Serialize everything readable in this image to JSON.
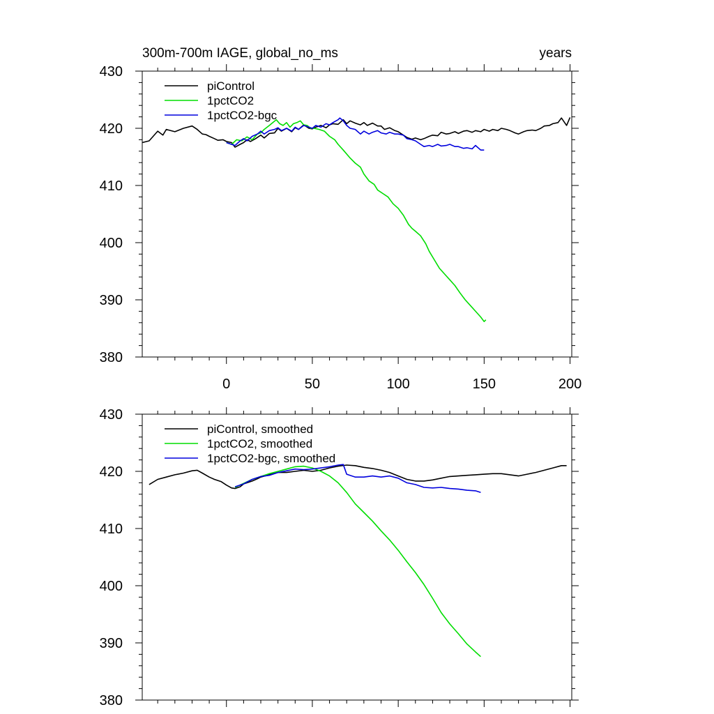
{
  "figure": {
    "title_left": "300m-700m IAGE, global_no_ms",
    "title_right": "years"
  },
  "chart_data": [
    {
      "type": "line",
      "title": "300m-700m IAGE, global_no_ms",
      "xlabel": "years",
      "ylabel": "",
      "xlim": [
        -49,
        201
      ],
      "ylim": [
        380,
        430
      ],
      "x_ticks": [
        0,
        50,
        100,
        150,
        200
      ],
      "x_tick_labels": [
        "0",
        "50",
        "100",
        "150",
        "200"
      ],
      "y_ticks": [
        380,
        390,
        400,
        410,
        420,
        430
      ],
      "y_tick_labels": [
        "380",
        "390",
        "400",
        "410",
        "420",
        "430"
      ],
      "grid": false,
      "legend_position": "top-left",
      "series": [
        {
          "name": "piControl",
          "color": "#000000",
          "x": [
            -49,
            -45,
            -40,
            -37,
            -35,
            -30,
            -25,
            -20,
            -17,
            -14,
            -12,
            -10,
            -7,
            -5,
            -2,
            0,
            3,
            5,
            8,
            10,
            12,
            14,
            17,
            20,
            22,
            25,
            28,
            30,
            32,
            35,
            38,
            40,
            42,
            45,
            48,
            50,
            52,
            55,
            58,
            60,
            62,
            65,
            68,
            70,
            72,
            75,
            78,
            80,
            82,
            85,
            88,
            90,
            92,
            95,
            98,
            100,
            103,
            105,
            108,
            110,
            113,
            115,
            118,
            120,
            123,
            125,
            128,
            130,
            133,
            135,
            138,
            140,
            143,
            145,
            148,
            150,
            153,
            155,
            158,
            160,
            163,
            165,
            168,
            170,
            173,
            175,
            178,
            180,
            183,
            185,
            188,
            190,
            193,
            195,
            198,
            200
          ],
          "y": [
            417.5,
            417.8,
            419.5,
            418.8,
            419.8,
            419.4,
            420.0,
            420.4,
            419.8,
            419.0,
            418.9,
            418.6,
            418.2,
            417.9,
            418.0,
            417.7,
            417.5,
            416.7,
            417.2,
            417.5,
            418.0,
            417.7,
            418.2,
            418.8,
            418.3,
            419.1,
            419.2,
            420.0,
            419.5,
            420.0,
            419.4,
            420.1,
            419.8,
            420.6,
            420.0,
            419.9,
            420.2,
            420.5,
            420.1,
            420.6,
            420.8,
            420.7,
            421.5,
            420.8,
            421.3,
            420.9,
            420.6,
            421.0,
            420.5,
            420.9,
            420.4,
            420.4,
            419.8,
            420.1,
            419.6,
            419.4,
            418.8,
            418.4,
            418.1,
            418.3,
            418.0,
            418.2,
            418.6,
            418.8,
            418.7,
            419.3,
            419.0,
            419.1,
            419.4,
            419.1,
            419.5,
            419.6,
            419.3,
            419.6,
            419.4,
            419.8,
            419.5,
            419.8,
            419.6,
            420.0,
            419.8,
            419.6,
            419.2,
            419.0,
            419.4,
            419.6,
            419.7,
            419.6,
            420.0,
            420.4,
            420.5,
            420.8,
            421.0,
            421.8,
            420.5,
            421.9
          ]
        },
        {
          "name": "1pctCO2",
          "color": "#00dd00",
          "x": [
            0,
            3,
            6,
            9,
            12,
            15,
            18,
            20,
            22,
            25,
            27,
            29,
            31,
            33,
            35,
            37,
            39,
            41,
            43,
            45,
            47,
            49,
            51,
            54,
            57,
            60,
            63,
            65,
            68,
            72,
            75,
            78,
            80,
            83,
            86,
            88,
            91,
            94,
            97,
            100,
            103,
            106,
            108,
            110,
            113,
            116,
            118,
            121,
            124,
            127,
            130,
            133,
            136,
            139,
            142,
            145,
            148,
            150,
            151
          ],
          "y": [
            417.5,
            417.2,
            418.0,
            417.8,
            418.5,
            418.0,
            419.0,
            419.2,
            419.8,
            420.5,
            421.0,
            421.5,
            420.8,
            420.5,
            421.0,
            420.2,
            420.8,
            421.0,
            421.3,
            420.6,
            420.5,
            420.0,
            420.0,
            419.8,
            419.5,
            418.6,
            418.0,
            417.2,
            416.2,
            414.8,
            413.9,
            413.2,
            412.0,
            410.8,
            410.2,
            409.2,
            408.6,
            408.0,
            406.8,
            406.0,
            404.8,
            403.2,
            402.5,
            402.0,
            401.2,
            399.8,
            398.5,
            397.0,
            395.5,
            394.5,
            393.5,
            392.5,
            391.2,
            390.0,
            389.0,
            388.0,
            387.0,
            386.2,
            386.5
          ]
        },
        {
          "name": "1pctCO2-bgc",
          "color": "#0000dd",
          "x": [
            0,
            3,
            5,
            8,
            10,
            12,
            15,
            18,
            20,
            22,
            25,
            28,
            30,
            32,
            35,
            38,
            40,
            42,
            45,
            48,
            50,
            52,
            55,
            58,
            60,
            62,
            65,
            66,
            68,
            70,
            72,
            75,
            78,
            80,
            83,
            85,
            88,
            90,
            93,
            95,
            98,
            100,
            103,
            105,
            108,
            110,
            113,
            115,
            118,
            120,
            123,
            125,
            128,
            130,
            133,
            135,
            138,
            140,
            143,
            145,
            148,
            150
          ],
          "y": [
            417.5,
            417.2,
            417.0,
            417.8,
            418.2,
            417.8,
            418.6,
            419.0,
            419.5,
            419.0,
            419.6,
            419.8,
            420.1,
            419.6,
            420.0,
            419.5,
            420.2,
            419.8,
            420.5,
            420.2,
            420.0,
            420.5,
            420.2,
            420.8,
            420.6,
            421.0,
            421.5,
            421.8,
            421.3,
            420.5,
            420.0,
            419.8,
            419.0,
            419.5,
            419.0,
            419.3,
            419.6,
            419.2,
            419.0,
            419.3,
            419.0,
            419.0,
            418.8,
            418.2,
            418.0,
            417.8,
            417.2,
            416.8,
            417.0,
            416.8,
            417.2,
            416.9,
            417.0,
            417.2,
            416.8,
            416.8,
            416.5,
            416.6,
            416.4,
            417.0,
            416.2,
            416.2
          ]
        }
      ]
    },
    {
      "type": "line",
      "title": "",
      "xlabel": "",
      "ylabel": "",
      "xlim": [
        -49,
        201
      ],
      "ylim": [
        380,
        430
      ],
      "x_ticks": [
        0,
        50,
        100,
        150,
        200
      ],
      "x_tick_labels": [],
      "y_ticks": [
        380,
        390,
        400,
        410,
        420,
        430
      ],
      "y_tick_labels": [
        "380",
        "390",
        "400",
        "410",
        "420",
        "430"
      ],
      "grid": false,
      "legend_position": "top-left",
      "series": [
        {
          "name": "piControl, smoothed",
          "color": "#000000",
          "x": [
            -45,
            -40,
            -35,
            -30,
            -25,
            -20,
            -17,
            -14,
            -10,
            -7,
            -3,
            0,
            3,
            5,
            8,
            10,
            12,
            15,
            18,
            20,
            25,
            30,
            35,
            40,
            45,
            50,
            55,
            60,
            65,
            70,
            75,
            80,
            85,
            90,
            95,
            100,
            105,
            110,
            115,
            120,
            125,
            130,
            135,
            140,
            145,
            150,
            155,
            160,
            165,
            170,
            175,
            180,
            185,
            190,
            195,
            198
          ],
          "y": [
            417.7,
            418.6,
            419.0,
            419.4,
            419.7,
            420.1,
            420.2,
            419.7,
            419.0,
            418.6,
            418.2,
            417.6,
            417.1,
            417.0,
            417.3,
            417.8,
            418.0,
            418.3,
            418.7,
            419.0,
            419.4,
            419.8,
            419.8,
            420.0,
            420.2,
            420.0,
            420.2,
            420.6,
            420.9,
            421.1,
            421.0,
            420.7,
            420.5,
            420.2,
            419.8,
            419.2,
            418.6,
            418.3,
            418.3,
            418.5,
            418.8,
            419.1,
            419.2,
            419.3,
            419.4,
            419.5,
            419.6,
            419.6,
            419.4,
            419.2,
            419.5,
            419.8,
            420.2,
            420.6,
            421.0,
            421.0
          ]
        },
        {
          "name": "1pctCO2, smoothed",
          "color": "#00dd00",
          "x": [
            5,
            10,
            15,
            20,
            25,
            30,
            35,
            40,
            45,
            50,
            55,
            60,
            65,
            70,
            75,
            80,
            85,
            90,
            95,
            100,
            105,
            110,
            115,
            120,
            125,
            130,
            135,
            140,
            145,
            148
          ],
          "y": [
            417.2,
            417.9,
            418.6,
            419.1,
            419.6,
            420.0,
            420.4,
            420.8,
            420.9,
            420.6,
            420.0,
            419.2,
            418.0,
            416.3,
            414.3,
            412.8,
            411.3,
            409.6,
            408.0,
            406.2,
            404.2,
            402.3,
            400.2,
            397.8,
            395.3,
            393.3,
            391.6,
            389.8,
            388.4,
            387.6
          ]
        },
        {
          "name": "1pctCO2-bgc, smoothed",
          "color": "#0000dd",
          "x": [
            5,
            10,
            15,
            20,
            25,
            30,
            35,
            40,
            45,
            50,
            55,
            60,
            65,
            68,
            70,
            75,
            80,
            85,
            90,
            95,
            100,
            105,
            110,
            115,
            120,
            125,
            130,
            135,
            140,
            145,
            148
          ],
          "y": [
            417.3,
            417.8,
            418.6,
            419.1,
            419.3,
            419.8,
            420.1,
            420.4,
            420.3,
            420.4,
            420.6,
            420.8,
            421.1,
            421.2,
            419.5,
            419.0,
            419.0,
            419.2,
            419.0,
            419.2,
            418.8,
            418.0,
            417.7,
            417.2,
            417.1,
            417.2,
            417.0,
            416.9,
            416.7,
            416.6,
            416.3
          ]
        }
      ]
    }
  ]
}
